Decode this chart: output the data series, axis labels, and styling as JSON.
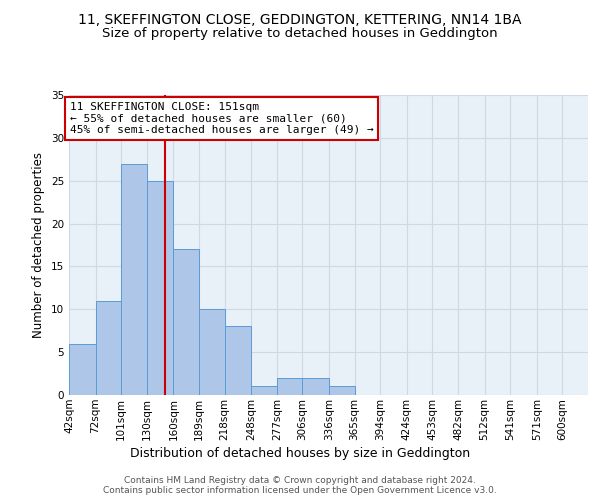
{
  "title": "11, SKEFFINGTON CLOSE, GEDDINGTON, KETTERING, NN14 1BA",
  "subtitle": "Size of property relative to detached houses in Geddington",
  "xlabel": "Distribution of detached houses by size in Geddington",
  "ylabel": "Number of detached properties",
  "bin_edges": [
    42,
    72,
    101,
    130,
    160,
    189,
    218,
    248,
    277,
    306,
    336,
    365,
    394,
    424,
    453,
    482,
    512,
    541,
    571,
    600,
    629
  ],
  "counts": [
    6,
    11,
    27,
    25,
    17,
    10,
    8,
    1,
    2,
    2,
    1,
    0,
    0,
    0,
    0,
    0,
    0,
    0,
    0,
    0
  ],
  "bar_color": "#aec6e8",
  "bar_edgecolor": "#5b9bd5",
  "reference_line_x": 151,
  "reference_line_color": "#cc0000",
  "annotation_text": "11 SKEFFINGTON CLOSE: 151sqm\n← 55% of detached houses are smaller (60)\n45% of semi-detached houses are larger (49) →",
  "annotation_box_edgecolor": "#cc0000",
  "annotation_box_facecolor": "#ffffff",
  "ylim": [
    0,
    35
  ],
  "yticks": [
    0,
    5,
    10,
    15,
    20,
    25,
    30,
    35
  ],
  "grid_color": "#d0d8e4",
  "background_color": "#e8f0f8",
  "footer_text": "Contains HM Land Registry data © Crown copyright and database right 2024.\nContains public sector information licensed under the Open Government Licence v3.0.",
  "title_fontsize": 10,
  "subtitle_fontsize": 9.5,
  "xlabel_fontsize": 9,
  "ylabel_fontsize": 8.5,
  "tick_fontsize": 7.5,
  "annotation_fontsize": 8,
  "footer_fontsize": 6.5
}
